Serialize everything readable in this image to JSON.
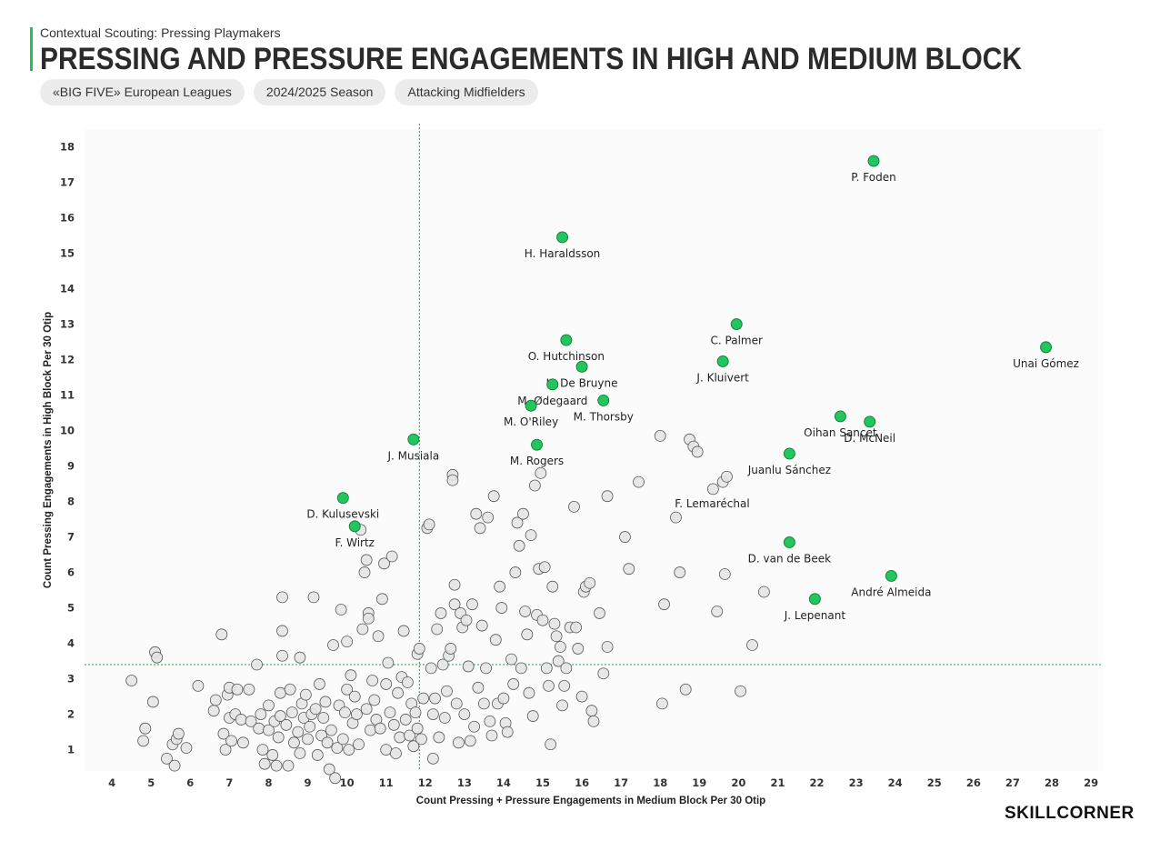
{
  "header": {
    "subtitle": "Contextual Scouting: Pressing Playmakers",
    "title": "PRESSING AND PRESSURE ENGAGEMENTS IN HIGH AND MEDIUM BLOCK",
    "tags": [
      "«BIG FIVE» European Leagues",
      "2024/2025 Season",
      "Attacking Midfielders"
    ]
  },
  "logo": "SKILLCORNER",
  "colors": {
    "highlight": "#22c55e",
    "point": "#e6e4e6",
    "point_stroke": "#555555",
    "reference_line": "#1aa04a"
  },
  "chart_data": {
    "type": "scatter",
    "xlabel": "Count Pressing + Pressure Engagements in Medium Block Per 30 Otip",
    "ylabel": "Count Pressing Engagements in High Block Per 30 Otip",
    "xlim": [
      3.3,
      29.3
    ],
    "ylim": [
      0.4,
      18.5
    ],
    "xticks": [
      4,
      5,
      6,
      7,
      8,
      9,
      10,
      11,
      12,
      13,
      14,
      15,
      16,
      17,
      18,
      19,
      20,
      21,
      22,
      23,
      24,
      25,
      26,
      27,
      28,
      29
    ],
    "yticks": [
      1,
      2,
      3,
      4,
      5,
      6,
      7,
      8,
      9,
      10,
      11,
      12,
      13,
      14,
      15,
      16,
      17,
      18
    ],
    "reference_lines": {
      "x": 11.85,
      "y": 3.4
    },
    "highlighted": [
      {
        "name": "P. Foden",
        "x": 23.45,
        "y": 17.6
      },
      {
        "name": "H. Haraldsson",
        "x": 15.5,
        "y": 15.45
      },
      {
        "name": "C. Palmer",
        "x": 19.95,
        "y": 13.0
      },
      {
        "name": "Unai Gómez",
        "x": 27.85,
        "y": 12.35
      },
      {
        "name": "O. Hutchinson",
        "x": 15.6,
        "y": 12.55
      },
      {
        "name": "J. Kluivert",
        "x": 19.6,
        "y": 11.95
      },
      {
        "name": "K. De Bruyne",
        "x": 16.0,
        "y": 11.8
      },
      {
        "name": "M. Ødegaard",
        "x": 15.25,
        "y": 11.3
      },
      {
        "name": "M. Thorsby",
        "x": 16.55,
        "y": 10.85
      },
      {
        "name": "M. O'Riley",
        "x": 14.7,
        "y": 10.7
      },
      {
        "name": "Oihan Sancet",
        "x": 22.6,
        "y": 10.4
      },
      {
        "name": "D. McNeil",
        "x": 23.35,
        "y": 10.25
      },
      {
        "name": "J. Musiala",
        "x": 11.7,
        "y": 9.75
      },
      {
        "name": "M. Rogers",
        "x": 14.85,
        "y": 9.6
      },
      {
        "name": "Juanlu Sánchez",
        "x": 21.3,
        "y": 9.35
      },
      {
        "name": "D. Kulusevski",
        "x": 9.9,
        "y": 8.1
      },
      {
        "name": "F. Wirtz",
        "x": 10.2,
        "y": 7.3
      },
      {
        "name": "D. van de Beek",
        "x": 21.3,
        "y": 6.85
      },
      {
        "name": "André Almeida",
        "x": 23.9,
        "y": 5.9
      },
      {
        "name": "J. Lepenant",
        "x": 21.95,
        "y": 5.25
      }
    ],
    "labeled_background": [
      {
        "name": "F. Lemaréchal",
        "x": 18.4,
        "y": 7.55
      }
    ],
    "background": [
      [
        4.5,
        2.95
      ],
      [
        4.8,
        1.25
      ],
      [
        4.85,
        1.6
      ],
      [
        5.05,
        2.35
      ],
      [
        5.1,
        3.75
      ],
      [
        5.15,
        3.6
      ],
      [
        5.4,
        0.75
      ],
      [
        5.55,
        1.15
      ],
      [
        5.6,
        0.55
      ],
      [
        5.65,
        1.3
      ],
      [
        5.7,
        1.45
      ],
      [
        5.9,
        1.05
      ],
      [
        6.2,
        2.8
      ],
      [
        6.6,
        2.1
      ],
      [
        6.65,
        2.4
      ],
      [
        6.8,
        4.25
      ],
      [
        6.85,
        1.45
      ],
      [
        6.9,
        1.0
      ],
      [
        6.95,
        2.55
      ],
      [
        7.0,
        2.75
      ],
      [
        7.0,
        1.9
      ],
      [
        7.05,
        1.25
      ],
      [
        7.15,
        2.0
      ],
      [
        7.2,
        2.7
      ],
      [
        7.3,
        1.85
      ],
      [
        7.35,
        1.2
      ],
      [
        7.5,
        2.7
      ],
      [
        7.55,
        1.8
      ],
      [
        7.7,
        3.4
      ],
      [
        7.75,
        1.6
      ],
      [
        7.8,
        2.0
      ],
      [
        7.85,
        1.0
      ],
      [
        7.9,
        0.6
      ],
      [
        8.0,
        2.25
      ],
      [
        8.0,
        1.55
      ],
      [
        8.1,
        0.85
      ],
      [
        8.15,
        1.8
      ],
      [
        8.2,
        0.55
      ],
      [
        8.25,
        1.35
      ],
      [
        8.3,
        2.6
      ],
      [
        8.3,
        1.95
      ],
      [
        8.35,
        5.3
      ],
      [
        8.35,
        4.35
      ],
      [
        8.35,
        3.65
      ],
      [
        8.45,
        1.7
      ],
      [
        8.5,
        0.55
      ],
      [
        8.55,
        2.7
      ],
      [
        8.6,
        2.05
      ],
      [
        8.65,
        1.2
      ],
      [
        8.75,
        1.5
      ],
      [
        8.8,
        3.6
      ],
      [
        8.8,
        0.9
      ],
      [
        8.85,
        2.3
      ],
      [
        8.9,
        1.9
      ],
      [
        8.95,
        2.55
      ],
      [
        9.0,
        1.3
      ],
      [
        9.05,
        1.65
      ],
      [
        9.1,
        2.0
      ],
      [
        9.15,
        5.3
      ],
      [
        9.2,
        2.15
      ],
      [
        9.25,
        0.85
      ],
      [
        9.3,
        2.85
      ],
      [
        9.35,
        1.4
      ],
      [
        9.4,
        1.9
      ],
      [
        9.45,
        2.35
      ],
      [
        9.5,
        1.2
      ],
      [
        9.55,
        0.45
      ],
      [
        9.6,
        1.55
      ],
      [
        9.65,
        3.95
      ],
      [
        9.7,
        0.2
      ],
      [
        9.75,
        1.05
      ],
      [
        9.8,
        2.25
      ],
      [
        9.85,
        4.95
      ],
      [
        9.9,
        1.3
      ],
      [
        9.95,
        2.05
      ],
      [
        10.0,
        4.05
      ],
      [
        10.0,
        2.7
      ],
      [
        10.05,
        1.0
      ],
      [
        10.1,
        3.1
      ],
      [
        10.15,
        1.75
      ],
      [
        10.2,
        2.5
      ],
      [
        10.25,
        2.0
      ],
      [
        10.3,
        1.15
      ],
      [
        10.35,
        7.2
      ],
      [
        10.4,
        4.4
      ],
      [
        10.45,
        6.0
      ],
      [
        10.5,
        6.35
      ],
      [
        10.5,
        2.15
      ],
      [
        10.55,
        4.85
      ],
      [
        10.55,
        4.7
      ],
      [
        10.6,
        1.55
      ],
      [
        10.65,
        2.95
      ],
      [
        10.7,
        2.4
      ],
      [
        10.75,
        1.85
      ],
      [
        10.8,
        4.2
      ],
      [
        10.85,
        1.6
      ],
      [
        10.9,
        5.25
      ],
      [
        10.95,
        6.25
      ],
      [
        11.0,
        2.85
      ],
      [
        11.0,
        1.0
      ],
      [
        11.05,
        3.45
      ],
      [
        11.1,
        2.05
      ],
      [
        11.15,
        6.45
      ],
      [
        11.2,
        1.7
      ],
      [
        11.25,
        0.9
      ],
      [
        11.3,
        2.6
      ],
      [
        11.35,
        1.35
      ],
      [
        11.4,
        3.05
      ],
      [
        11.45,
        4.35
      ],
      [
        11.5,
        1.85
      ],
      [
        11.55,
        2.9
      ],
      [
        11.6,
        1.4
      ],
      [
        11.65,
        2.3
      ],
      [
        11.7,
        1.1
      ],
      [
        11.75,
        2.05
      ],
      [
        11.8,
        3.7
      ],
      [
        11.8,
        1.6
      ],
      [
        11.85,
        3.85
      ],
      [
        11.9,
        1.3
      ],
      [
        11.95,
        2.45
      ],
      [
        12.05,
        7.25
      ],
      [
        12.1,
        7.35
      ],
      [
        12.15,
        3.3
      ],
      [
        12.2,
        2.0
      ],
      [
        12.2,
        0.75
      ],
      [
        12.25,
        2.45
      ],
      [
        12.3,
        4.4
      ],
      [
        12.35,
        1.35
      ],
      [
        12.4,
        4.85
      ],
      [
        12.45,
        3.4
      ],
      [
        12.5,
        1.9
      ],
      [
        12.55,
        2.65
      ],
      [
        12.6,
        3.65
      ],
      [
        12.65,
        3.85
      ],
      [
        12.7,
        8.75
      ],
      [
        12.7,
        8.6
      ],
      [
        12.75,
        5.65
      ],
      [
        12.75,
        5.1
      ],
      [
        12.8,
        2.3
      ],
      [
        12.85,
        1.2
      ],
      [
        12.9,
        4.85
      ],
      [
        12.95,
        4.45
      ],
      [
        13.0,
        2.0
      ],
      [
        13.05,
        4.65
      ],
      [
        13.1,
        3.35
      ],
      [
        13.15,
        1.25
      ],
      [
        13.2,
        5.1
      ],
      [
        13.25,
        1.65
      ],
      [
        13.3,
        7.65
      ],
      [
        13.35,
        2.75
      ],
      [
        13.4,
        7.25
      ],
      [
        13.45,
        4.5
      ],
      [
        13.5,
        2.3
      ],
      [
        13.55,
        3.3
      ],
      [
        13.6,
        7.55
      ],
      [
        13.65,
        1.8
      ],
      [
        13.7,
        1.4
      ],
      [
        13.75,
        8.15
      ],
      [
        13.8,
        4.1
      ],
      [
        13.85,
        2.3
      ],
      [
        13.9,
        5.6
      ],
      [
        13.95,
        5.0
      ],
      [
        14.0,
        2.45
      ],
      [
        14.05,
        1.75
      ],
      [
        14.1,
        1.5
      ],
      [
        14.2,
        3.55
      ],
      [
        14.25,
        2.85
      ],
      [
        14.3,
        6.0
      ],
      [
        14.35,
        7.4
      ],
      [
        14.4,
        6.75
      ],
      [
        14.45,
        3.3
      ],
      [
        14.5,
        7.65
      ],
      [
        14.55,
        4.9
      ],
      [
        14.6,
        4.25
      ],
      [
        14.65,
        2.6
      ],
      [
        14.7,
        7.05
      ],
      [
        14.75,
        1.95
      ],
      [
        14.8,
        8.45
      ],
      [
        14.85,
        4.8
      ],
      [
        14.9,
        6.1
      ],
      [
        14.95,
        8.8
      ],
      [
        15.0,
        4.65
      ],
      [
        15.05,
        6.15
      ],
      [
        15.1,
        3.3
      ],
      [
        15.15,
        2.8
      ],
      [
        15.2,
        1.15
      ],
      [
        15.25,
        5.6
      ],
      [
        15.3,
        4.55
      ],
      [
        15.35,
        4.2
      ],
      [
        15.4,
        3.5
      ],
      [
        15.45,
        3.9
      ],
      [
        15.5,
        2.25
      ],
      [
        15.55,
        2.8
      ],
      [
        15.6,
        3.3
      ],
      [
        15.7,
        4.45
      ],
      [
        15.8,
        7.85
      ],
      [
        15.85,
        4.45
      ],
      [
        15.9,
        3.85
      ],
      [
        16.0,
        2.5
      ],
      [
        16.05,
        5.45
      ],
      [
        16.1,
        5.6
      ],
      [
        16.2,
        5.7
      ],
      [
        16.25,
        2.1
      ],
      [
        16.3,
        1.8
      ],
      [
        16.45,
        4.85
      ],
      [
        16.55,
        3.15
      ],
      [
        16.65,
        3.9
      ],
      [
        16.65,
        8.15
      ],
      [
        17.1,
        7.0
      ],
      [
        17.2,
        6.1
      ],
      [
        17.45,
        8.55
      ],
      [
        18.0,
        9.85
      ],
      [
        18.05,
        2.3
      ],
      [
        18.1,
        5.1
      ],
      [
        18.5,
        6.0
      ],
      [
        18.65,
        2.7
      ],
      [
        18.75,
        9.75
      ],
      [
        18.85,
        9.55
      ],
      [
        18.95,
        9.4
      ],
      [
        19.35,
        8.35
      ],
      [
        19.45,
        4.9
      ],
      [
        19.6,
        8.55
      ],
      [
        19.65,
        5.95
      ],
      [
        19.7,
        8.7
      ],
      [
        20.05,
        2.65
      ],
      [
        20.35,
        3.95
      ],
      [
        20.65,
        5.45
      ]
    ]
  }
}
